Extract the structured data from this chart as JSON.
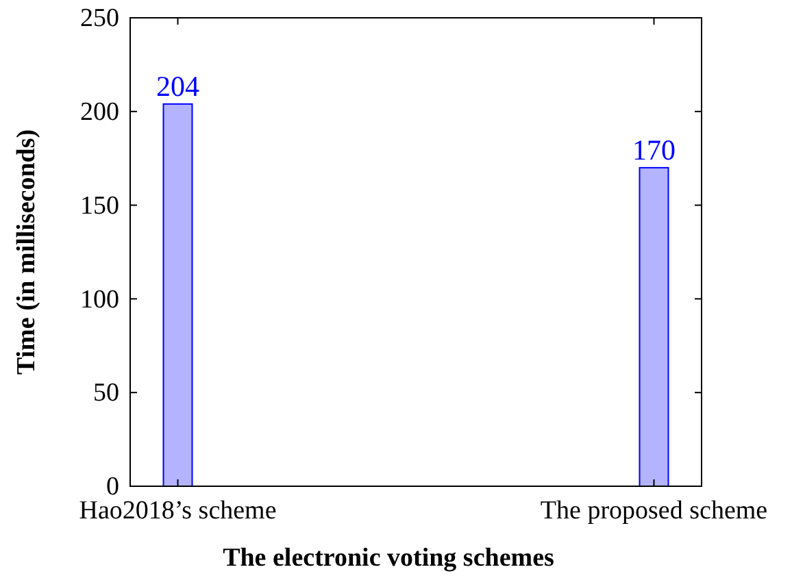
{
  "chart_data": {
    "type": "bar",
    "categories": [
      "Hao2018’s scheme",
      "The proposed scheme"
    ],
    "values": [
      204,
      170
    ],
    "color": "#b3b3ff",
    "xlabel": "The electronic voting schemes",
    "ylabel": "Time (in milliseconds)",
    "ylim": [
      0,
      250
    ],
    "yticks": [
      0,
      50,
      100,
      150,
      200,
      250
    ],
    "data_labels": true,
    "grid": false
  }
}
